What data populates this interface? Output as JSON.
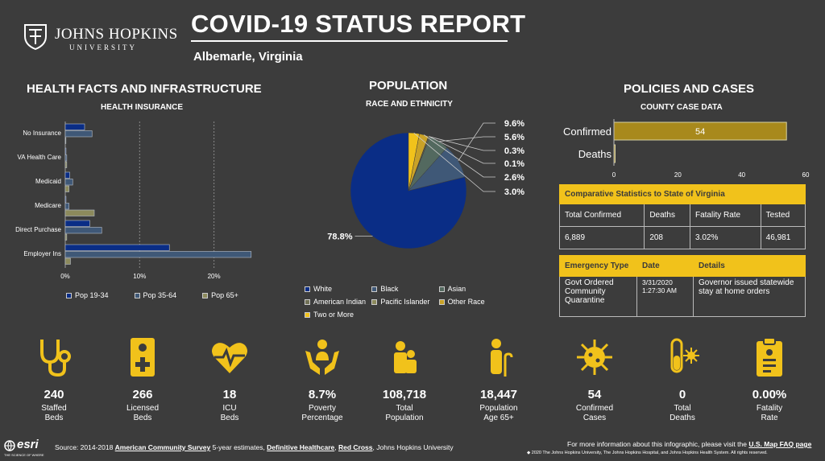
{
  "header": {
    "logo_name": "JOHNS HOPKINS",
    "logo_sub": "UNIVERSITY",
    "title": "COVID-19 STATUS REPORT",
    "location": "Albemarle,  Virginia"
  },
  "sections": {
    "health": {
      "title": "HEALTH FACTS AND INFRASTRUCTURE",
      "subtitle": "HEALTH INSURANCE"
    },
    "population": {
      "title": "POPULATION",
      "subtitle": "RACE AND ETHNICITY"
    },
    "policies": {
      "title": "POLICIES AND CASES",
      "subtitle": "COUNTY CASE DATA"
    }
  },
  "chart_data": [
    {
      "type": "bar",
      "orientation": "horizontal",
      "subtitle": "HEALTH INSURANCE",
      "categories": [
        "No Insurance",
        "VA Health Care",
        "Medicaid",
        "Medicare",
        "Direct Purchase",
        "Employer Ins"
      ],
      "series": [
        {
          "name": "Pop 19-34",
          "color": "#0a2d86",
          "values": [
            2.6,
            0.1,
            0.6,
            0.1,
            3.3,
            14.0
          ]
        },
        {
          "name": "Pop 35-64",
          "color": "#3f5877",
          "values": [
            3.6,
            0.2,
            1.0,
            0.5,
            4.9,
            25.0
          ]
        },
        {
          "name": "Pop 65+",
          "color": "#8c8a5c",
          "values": [
            0.0,
            0.2,
            0.5,
            3.9,
            0.2,
            0.7
          ]
        }
      ],
      "xticks": [
        "0%",
        "10%",
        "20%"
      ],
      "xlim": [
        0,
        26
      ],
      "grid": true,
      "legend": "bottom"
    },
    {
      "type": "pie",
      "subtitle": "RACE AND ETHNICITY",
      "slices": [
        {
          "name": "White",
          "value": 78.8,
          "label": "78.8%",
          "color": "#0a2d86"
        },
        {
          "name": "Black",
          "value": 9.6,
          "label": "9.6%",
          "color": "#3f5877"
        },
        {
          "name": "Asian",
          "value": 5.6,
          "label": "5.6%",
          "color": "#53695f"
        },
        {
          "name": "American Indian",
          "value": 0.3,
          "label": "0.3%",
          "color": "#707056"
        },
        {
          "name": "Pacific Islander",
          "value": 0.1,
          "label": "0.1%",
          "color": "#8c8a5c"
        },
        {
          "name": "Other Race",
          "value": 2.6,
          "label": "2.6%",
          "color": "#c9a227"
        },
        {
          "name": "Two or More",
          "value": 3.0,
          "label": "3.0%",
          "color": "#f1c21b"
        }
      ],
      "legend": "bottom"
    },
    {
      "type": "bar",
      "orientation": "horizontal",
      "subtitle": "COUNTY CASE DATA",
      "categories": [
        "Confirmed",
        "Deaths"
      ],
      "values": [
        54,
        0
      ],
      "value_labels": [
        "54",
        ""
      ],
      "xticks": [
        "0",
        "20",
        "40",
        "60"
      ],
      "xlim": [
        0,
        60
      ],
      "color": "#a8891c"
    }
  ],
  "comparative": {
    "title": "Comparative Statistics to State of Virginia",
    "headers": [
      "Total Confirmed",
      "Deaths",
      "Fatality Rate",
      "Tested"
    ],
    "values": [
      "6,889",
      "208",
      "3.02%",
      "46,981"
    ]
  },
  "emergency": {
    "headers": [
      "Emergency Type",
      "Date",
      "Details"
    ],
    "rows": [
      {
        "type": "Govt Ordered Community Quarantine",
        "date": "3/31/2020 1:27:30 AM",
        "details": "Governor issued statewide stay at home orders"
      }
    ]
  },
  "stats": [
    {
      "icon": "stethoscope-icon",
      "value": "240",
      "label1": "Staffed",
      "label2": "Beds"
    },
    {
      "icon": "hospital-bed-icon",
      "value": "266",
      "label1": "Licensed",
      "label2": "Beds"
    },
    {
      "icon": "heart-monitor-icon",
      "value": "18",
      "label1": "ICU",
      "label2": "Beds"
    },
    {
      "icon": "helping-hands-icon",
      "value": "8.7%",
      "label1": "Poverty",
      "label2": "Percentage"
    },
    {
      "icon": "people-icon",
      "value": "108,718",
      "label1": "Total",
      "label2": "Population"
    },
    {
      "icon": "elderly-person-icon",
      "value": "18,447",
      "label1": "Population",
      "label2": "Age 65+"
    },
    {
      "icon": "virus-icon",
      "value": "54",
      "label1": "Confirmed",
      "label2": "Cases"
    },
    {
      "icon": "test-tube-virus-icon",
      "value": "0",
      "label1": "Total",
      "label2": "Deaths"
    },
    {
      "icon": "clipboard-icon",
      "value": "0.00%",
      "label1": "Fatality",
      "label2": "Rate"
    }
  ],
  "footer": {
    "source_prefix": "Source: 2014-2018 ",
    "source_acs": "American Community Survey",
    "source_mid": " 5-year estimates, ",
    "source_dh": "Definitive Healthcare",
    "source_sep": ", ",
    "source_rc": "Red Cross",
    "source_jhu": ", Johns Hopkins University",
    "info_prefix": "For more information about this infographic, please visit the ",
    "info_link": "U.S. Map FAQ page",
    "copyright": "◆ 2020 The Johns Hopkins University, The Johns Hopkins Hospital, and Johns Hopkins Health System. All rights reserved.",
    "esri_name": "esri",
    "esri_tagline": "THE SCIENCE OF WHERE"
  },
  "colors": {
    "accent": "#f1c21b",
    "background": "#3c3c3c",
    "navy": "#0a2d86"
  }
}
